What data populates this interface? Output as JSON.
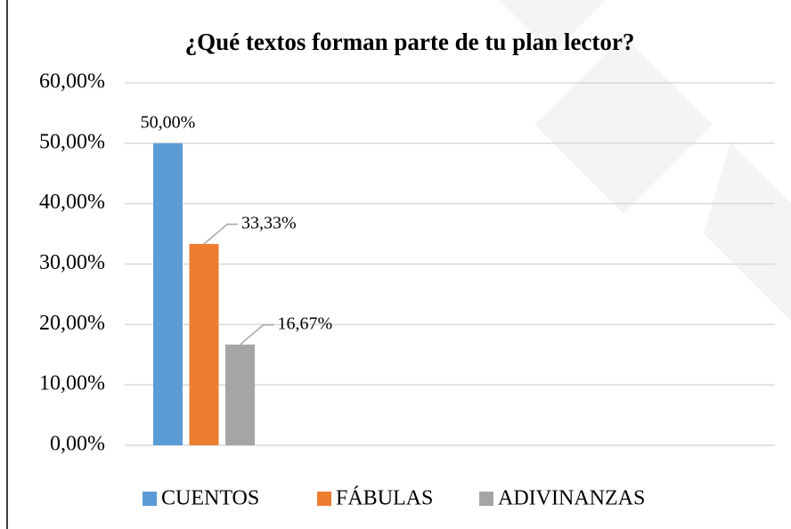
{
  "chart_data": {
    "type": "bar",
    "title": "¿Qué textos forman parte de tu plan lector?",
    "categories": [
      null
    ],
    "series": [
      {
        "name": "CUENTOS",
        "color": "#5b9bd5",
        "values": [
          50
        ],
        "value_labels": [
          "50,00%"
        ]
      },
      {
        "name": "FÁBULAS",
        "color": "#ed7d31",
        "values": [
          33.33
        ],
        "value_labels": [
          "33,33%"
        ]
      },
      {
        "name": "ADIVINANZAS",
        "color": "#a5a5a5",
        "values": [
          16.67
        ],
        "value_labels": [
          "16,67%"
        ]
      }
    ],
    "ylim": [
      0,
      60
    ],
    "yticks": [
      {
        "value": 0,
        "label": "0,00%"
      },
      {
        "value": 10,
        "label": "10,00%"
      },
      {
        "value": 20,
        "label": "20,00%"
      },
      {
        "value": 30,
        "label": "30,00%"
      },
      {
        "value": 40,
        "label": "40,00%"
      },
      {
        "value": 50,
        "label": "50,00%"
      },
      {
        "value": 60,
        "label": "60,00%"
      }
    ],
    "grid": true,
    "legend": "bottom"
  }
}
